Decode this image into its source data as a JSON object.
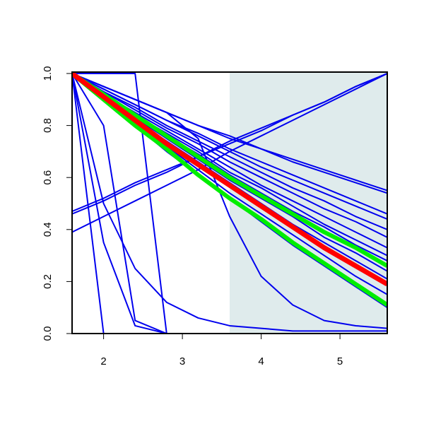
{
  "chart_data": {
    "type": "line",
    "x": [
      1.6,
      2.0,
      2.4,
      2.8,
      3.2,
      3.6,
      4.0,
      4.4,
      4.8,
      5.2,
      5.6
    ],
    "xlim": [
      1.6,
      5.6
    ],
    "ylim": [
      0,
      1
    ],
    "xticks": [
      2,
      3,
      4,
      5
    ],
    "yticks": [
      {
        "value": 0,
        "label": "0.0"
      },
      {
        "value": 0.2,
        "label": "0.2"
      },
      {
        "value": 0.4,
        "label": "0.4"
      },
      {
        "value": 0.6,
        "label": "0.6"
      },
      {
        "value": 0.8,
        "label": "0.8"
      },
      {
        "value": 1,
        "label": "1.0"
      }
    ],
    "shaded_xrange": [
      3.6,
      5.6
    ],
    "shade_color": "#dfebec",
    "series": [
      {
        "color": "#0000ee",
        "width": 2,
        "values": [
          1,
          0.95,
          0.9,
          0.85,
          0.8,
          0.76,
          0.71,
          0.67,
          0.63,
          0.59,
          0.55
        ]
      },
      {
        "color": "#0000ee",
        "width": 2,
        "values": [
          1,
          0.95,
          0.9,
          0.85,
          0.8,
          0.75,
          0.71,
          0.66,
          0.62,
          0.58,
          0.54
        ]
      },
      {
        "color": "#0000ee",
        "width": 2,
        "values": [
          1,
          0.94,
          0.88,
          0.82,
          0.77,
          0.71,
          0.66,
          0.61,
          0.56,
          0.51,
          0.46
        ]
      },
      {
        "color": "#0000ee",
        "width": 2,
        "values": [
          1,
          0.94,
          0.88,
          0.82,
          0.76,
          0.7,
          0.64,
          0.59,
          0.54,
          0.49,
          0.44
        ]
      },
      {
        "color": "#0000ee",
        "width": 2,
        "values": [
          1,
          0.93,
          0.87,
          0.8,
          0.74,
          0.68,
          0.62,
          0.56,
          0.51,
          0.45,
          0.4
        ]
      },
      {
        "color": "#0000ee",
        "width": 2,
        "values": [
          1,
          0.93,
          0.86,
          0.79,
          0.73,
          0.66,
          0.6,
          0.54,
          0.48,
          0.43,
          0.37
        ]
      },
      {
        "color": "#0000ee",
        "width": 2,
        "values": [
          1,
          0.92,
          0.85,
          0.78,
          0.71,
          0.64,
          0.57,
          0.51,
          0.45,
          0.39,
          0.33
        ]
      },
      {
        "color": "#0000ee",
        "width": 2,
        "values": [
          1,
          0.92,
          0.84,
          0.77,
          0.7,
          0.62,
          0.56,
          0.49,
          0.42,
          0.36,
          0.3
        ]
      },
      {
        "color": "#0000ee",
        "width": 2,
        "values": [
          1,
          0.92,
          0.84,
          0.76,
          0.69,
          0.61,
          0.54,
          0.47,
          0.41,
          0.34,
          0.28
        ]
      },
      {
        "color": "#0000ee",
        "width": 2,
        "values": [
          1,
          0.91,
          0.83,
          0.75,
          0.67,
          0.59,
          0.52,
          0.45,
          0.37,
          0.31,
          0.24
        ]
      },
      {
        "color": "#0000ee",
        "width": 2,
        "values": [
          1,
          0.91,
          0.82,
          0.74,
          0.66,
          0.58,
          0.5,
          0.42,
          0.35,
          0.28,
          0.21
        ]
      },
      {
        "color": "#0000ee",
        "width": 2,
        "values": [
          1,
          0.9,
          0.81,
          0.72,
          0.63,
          0.54,
          0.46,
          0.38,
          0.3,
          0.22,
          0.15
        ]
      },
      {
        "color": "#0000ee",
        "width": 2,
        "values": [
          1,
          0.9,
          0.8,
          0.7,
          0.61,
          0.52,
          0.43,
          0.34,
          0.26,
          0.18,
          0.1
        ]
      },
      {
        "color": "#0000ee",
        "width": 2,
        "values": [
          1,
          0.95,
          0.9,
          0.85,
          0.75,
          0.45,
          0.22,
          0.11,
          0.05,
          0.03,
          0.02
        ]
      },
      {
        "color": "#0000ee",
        "width": 2,
        "values": [
          1,
          0.5,
          0.25,
          0.12,
          0.06,
          0.03,
          0.02,
          0.01,
          0.01,
          0.01,
          0.01
        ]
      },
      {
        "color": "#0000ee",
        "width": 2,
        "values": [
          1,
          1,
          1,
          0,
          0,
          0,
          0,
          0,
          0,
          0,
          0
        ]
      },
      {
        "color": "#0000ee",
        "width": 2,
        "values": [
          1,
          0.8,
          0.05,
          0,
          0,
          0,
          0,
          0,
          0,
          0,
          0
        ]
      },
      {
        "color": "#0000ee",
        "width": 2,
        "values": [
          1,
          0.35,
          0.03,
          0,
          0,
          0,
          0,
          0,
          0,
          0,
          0
        ]
      },
      {
        "color": "#0000ee",
        "width": 2,
        "values": [
          1,
          0,
          0,
          0,
          0,
          0,
          0,
          0,
          0,
          0,
          0
        ]
      },
      {
        "color": "#0000ee",
        "width": 2,
        "values": [
          0.39,
          0.45,
          0.51,
          0.57,
          0.63,
          0.7,
          0.76,
          0.82,
          0.88,
          0.94,
          1.0
        ]
      },
      {
        "color": "#0000ee",
        "width": 2,
        "values": [
          0.46,
          0.51,
          0.57,
          0.62,
          0.68,
          0.73,
          0.78,
          0.84,
          0.89,
          0.95,
          1.0
        ]
      },
      {
        "color": "#0000ee",
        "width": 2,
        "values": [
          0.47,
          0.52,
          0.58,
          0.63,
          0.68,
          0.74,
          0.79,
          0.84,
          0.89,
          0.95,
          1.0
        ]
      },
      {
        "color": "#00ee00",
        "width": 6,
        "values": [
          1,
          0.92,
          0.84,
          0.76,
          0.68,
          0.6,
          0.53,
          0.46,
          0.39,
          0.33,
          0.26
        ]
      },
      {
        "color": "#00ee00",
        "width": 6,
        "values": [
          1,
          0.9,
          0.8,
          0.71,
          0.61,
          0.52,
          0.44,
          0.35,
          0.27,
          0.19,
          0.11
        ]
      },
      {
        "color": "#ff0000",
        "width": 7,
        "values": [
          1,
          0.91,
          0.82,
          0.73,
          0.65,
          0.57,
          0.49,
          0.41,
          0.33,
          0.26,
          0.19
        ]
      }
    ]
  }
}
